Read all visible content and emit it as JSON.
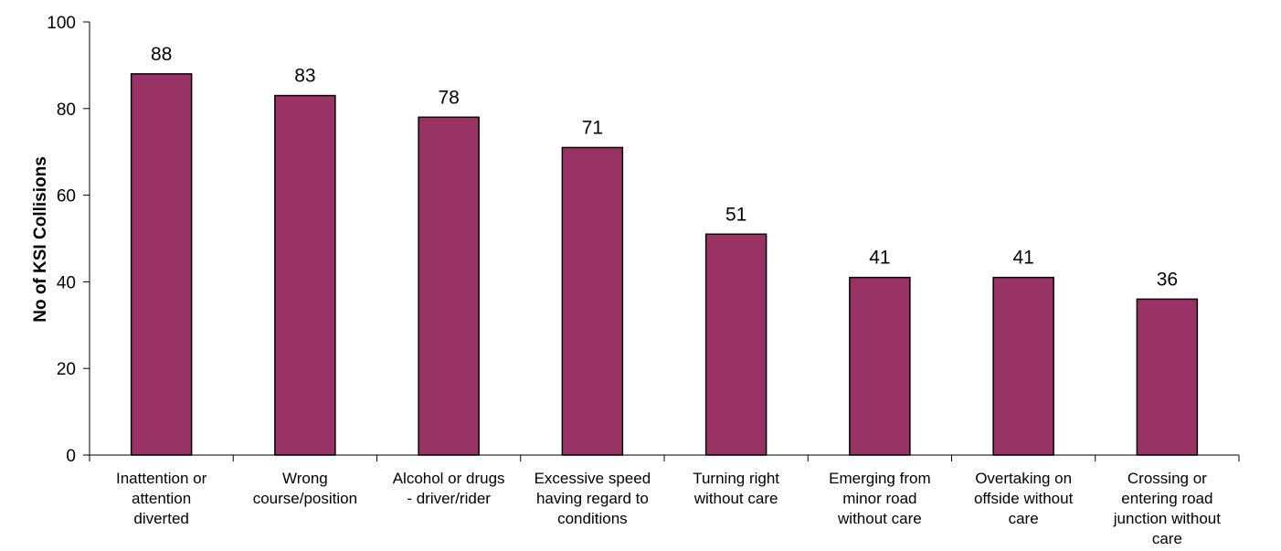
{
  "chart_data": {
    "type": "bar",
    "title": "",
    "xlabel": "",
    "ylabel": "No of KSI Collisions",
    "ylim": [
      0,
      100
    ],
    "yticks": [
      0,
      20,
      40,
      60,
      80,
      100
    ],
    "grid": false,
    "bar_color": "#993366",
    "categories": [
      [
        "Inattention or",
        "attention",
        "diverted"
      ],
      [
        "Wrong",
        "course/position"
      ],
      [
        "Alcohol or drugs",
        "- driver/rider"
      ],
      [
        "Excessive speed",
        "having regard to",
        "conditions"
      ],
      [
        "Turning right",
        "without care"
      ],
      [
        "Emerging from",
        "minor road",
        "without care"
      ],
      [
        "Overtaking on",
        "offside without",
        "care"
      ],
      [
        "Crossing or",
        "entering road",
        "junction without",
        "care"
      ]
    ],
    "values": [
      88,
      83,
      78,
      71,
      51,
      41,
      41,
      36
    ]
  }
}
